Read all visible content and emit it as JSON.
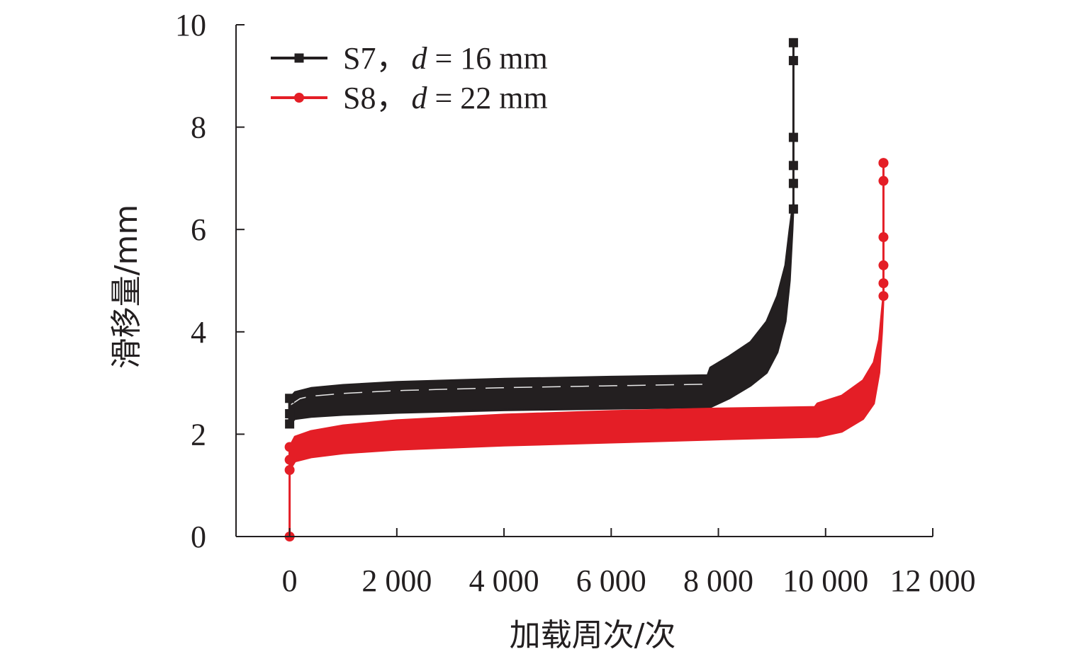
{
  "chart_data": {
    "type": "line",
    "xlabel": "加载周次/次",
    "ylabel": "滑移量/mm",
    "xlim": [
      -1000,
      12000
    ],
    "ylim": [
      0,
      10
    ],
    "x_ticks": [
      0,
      2000,
      4000,
      6000,
      8000,
      10000,
      12000
    ],
    "x_tick_labels": [
      "0",
      "2 000",
      "4 000",
      "6 000",
      "8 000",
      "10 000",
      "12 000"
    ],
    "y_ticks": [
      0,
      2,
      4,
      6,
      8,
      10
    ],
    "y_tick_labels": [
      "0",
      "2",
      "4",
      "6",
      "8",
      "10"
    ],
    "grid": false,
    "legend_position": "top-left",
    "series": [
      {
        "name": "S7，d = 16 mm",
        "legend": {
          "prefix": "S7，",
          "var": "d",
          "suffix": " = 16 mm"
        },
        "color": "#231f20",
        "marker": "square",
        "band": {
          "x": [
            0,
            100,
            400,
            1000,
            2000,
            4000,
            6000,
            7800,
            7850,
            8200,
            8600,
            8900,
            9100,
            9250,
            9330,
            9380,
            9400
          ],
          "upper": [
            2.7,
            2.82,
            2.9,
            2.96,
            3.02,
            3.08,
            3.12,
            3.15,
            3.3,
            3.52,
            3.8,
            4.2,
            4.7,
            5.3,
            6.0,
            6.4,
            6.5
          ],
          "lower": [
            2.2,
            2.3,
            2.34,
            2.38,
            2.42,
            2.47,
            2.5,
            2.53,
            2.53,
            2.7,
            2.95,
            3.2,
            3.6,
            4.2,
            5.0,
            6.0,
            6.5
          ]
        },
        "tail": {
          "x": [
            9400,
            9400,
            9400,
            9400,
            9400,
            9400
          ],
          "y": [
            6.4,
            6.9,
            7.25,
            7.8,
            9.3,
            9.65
          ]
        }
      },
      {
        "name": "S8，d = 22 mm",
        "legend": {
          "prefix": "S8，",
          "var": "d",
          "suffix": " = 22 mm"
        },
        "color": "#e41e26",
        "marker": "circle",
        "start": {
          "x": [
            0,
            0,
            0,
            0
          ],
          "y": [
            0,
            1.3,
            1.5,
            1.75
          ]
        },
        "band": {
          "x": [
            0,
            100,
            400,
            1000,
            2000,
            4000,
            6000,
            8000,
            9800,
            9850,
            10300,
            10700,
            10900,
            11000,
            11050,
            11080
          ],
          "upper": [
            1.75,
            1.95,
            2.06,
            2.17,
            2.27,
            2.38,
            2.45,
            2.5,
            2.53,
            2.6,
            2.75,
            3.05,
            3.4,
            3.85,
            4.4,
            4.7
          ],
          "lower": [
            1.3,
            1.47,
            1.55,
            1.63,
            1.7,
            1.78,
            1.84,
            1.9,
            1.95,
            1.95,
            2.05,
            2.3,
            2.6,
            3.2,
            4.0,
            4.7
          ]
        },
        "tail": {
          "x": [
            11080,
            11080,
            11080,
            11080,
            11080,
            11080,
            11080
          ],
          "y": [
            4.7,
            4.95,
            5.3,
            5.85,
            6.95,
            7.3,
            7.3
          ]
        }
      }
    ]
  }
}
